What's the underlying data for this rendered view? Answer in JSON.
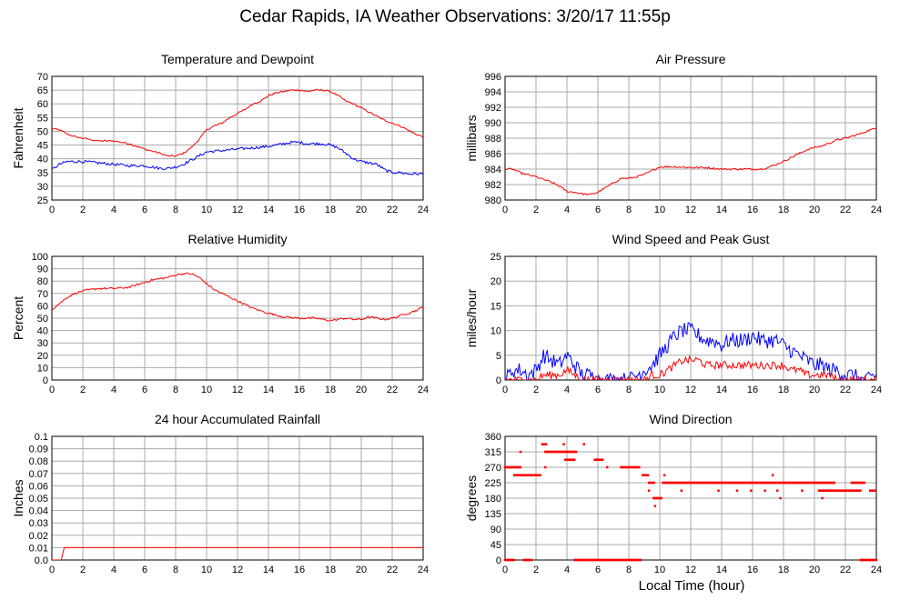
{
  "page": {
    "title": "Cedar Rapids, IA Weather Observations: 3/20/17 11:55p",
    "x_axis_label": "Local Time (hour)"
  },
  "colors": {
    "red": "#ff0000",
    "blue": "#0000ff",
    "grid": "#aaaaaa",
    "axis": "#000000"
  },
  "chart_data": [
    {
      "id": "temp",
      "type": "line",
      "title": "Temperature and Dewpoint",
      "ylabel": "Fahrenheit",
      "xlim": [
        0,
        24
      ],
      "ylim": [
        25,
        70
      ],
      "xticks": [
        0,
        2,
        4,
        6,
        8,
        10,
        12,
        14,
        16,
        18,
        20,
        22,
        24
      ],
      "yticks": [
        25,
        30,
        35,
        40,
        45,
        50,
        55,
        60,
        65,
        70
      ],
      "grid": true,
      "series": [
        {
          "color": "red",
          "jitter": 0.3,
          "x": [
            0,
            0.5,
            1,
            1.5,
            2,
            3,
            4,
            5,
            6,
            7,
            7.5,
            8,
            8.5,
            9,
            9.5,
            10,
            10.5,
            11,
            11.5,
            12,
            12.5,
            13,
            13.5,
            14,
            14.5,
            15,
            15.5,
            16,
            16.5,
            17,
            17.5,
            18,
            18.5,
            19,
            19.5,
            20,
            20.5,
            21,
            21.5,
            22,
            22.5,
            23,
            23.5,
            24
          ],
          "y": [
            51,
            50.5,
            49,
            48,
            47.5,
            46.5,
            46.5,
            45.5,
            43.5,
            42,
            41,
            41,
            42,
            44,
            47,
            50.5,
            52,
            53,
            55,
            56.5,
            58,
            60,
            61,
            63,
            64,
            64.5,
            65,
            65,
            64.5,
            65,
            65,
            64.5,
            63,
            61,
            60,
            58.5,
            57,
            55.5,
            54,
            53,
            52,
            50.5,
            49,
            48
          ]
        },
        {
          "color": "blue",
          "jitter": 0.5,
          "x": [
            0,
            0.5,
            1,
            2,
            3,
            4,
            5,
            6,
            7,
            7.5,
            8,
            8.5,
            9,
            9.5,
            10,
            11,
            12,
            13,
            14,
            15,
            15.5,
            16,
            16.5,
            17,
            17.5,
            18,
            18.5,
            19,
            19.5,
            20,
            21,
            21.5,
            22,
            22.5,
            23,
            23.5,
            24
          ],
          "y": [
            36,
            38,
            39,
            39,
            38.5,
            38,
            37.5,
            37.5,
            36.5,
            36.5,
            37,
            38,
            39.5,
            41,
            42.5,
            43,
            43.5,
            44,
            44.5,
            45.5,
            46,
            46,
            45.5,
            45.5,
            45.5,
            45,
            44,
            42,
            40,
            39,
            38,
            36,
            35,
            35,
            34.5,
            34.5,
            34.5
          ]
        }
      ]
    },
    {
      "id": "pressure",
      "type": "line",
      "title": "Air Pressure",
      "ylabel": "millibars",
      "xlim": [
        0,
        24
      ],
      "ylim": [
        980,
        996
      ],
      "xticks": [
        0,
        2,
        4,
        6,
        8,
        10,
        12,
        14,
        16,
        18,
        20,
        22,
        24
      ],
      "yticks": [
        980,
        982,
        984,
        986,
        988,
        990,
        992,
        994,
        996
      ],
      "grid": true,
      "series": [
        {
          "color": "red",
          "jitter": 0.12,
          "x": [
            0,
            0.5,
            1,
            2,
            3,
            3.5,
            4,
            4.5,
            5,
            5.5,
            6,
            6.5,
            7,
            7.5,
            8,
            8.5,
            9,
            9.5,
            10,
            11,
            12,
            13,
            14,
            15,
            16,
            16.5,
            17,
            17.5,
            18,
            18.5,
            19,
            19.5,
            20,
            20.5,
            21,
            21.5,
            22,
            22.5,
            23,
            23.5,
            24
          ],
          "y": [
            984,
            984,
            983.5,
            983,
            982.3,
            981.8,
            981.1,
            981,
            980.8,
            980.7,
            981,
            981.6,
            982.2,
            982.8,
            982.8,
            983,
            983.3,
            983.8,
            984.3,
            984.3,
            984.2,
            984.2,
            984,
            984,
            984,
            984,
            984.2,
            984.6,
            985,
            985.5,
            986,
            986.5,
            986.8,
            987,
            987.4,
            987.8,
            988,
            988.3,
            988.6,
            989,
            989.3
          ]
        }
      ]
    },
    {
      "id": "humidity",
      "type": "line",
      "title": "Relative Humidity",
      "ylabel": "Percent",
      "xlim": [
        0,
        24
      ],
      "ylim": [
        0,
        100
      ],
      "xticks": [
        0,
        2,
        4,
        6,
        8,
        10,
        12,
        14,
        16,
        18,
        20,
        22,
        24
      ],
      "yticks": [
        0,
        10,
        20,
        30,
        40,
        50,
        60,
        70,
        80,
        90,
        100
      ],
      "grid": true,
      "series": [
        {
          "color": "red",
          "jitter": 0.8,
          "x": [
            0,
            0.5,
            1,
            1.5,
            2,
            3,
            4,
            5,
            6,
            6.5,
            7,
            7.5,
            8,
            8.5,
            9,
            9.5,
            10,
            10.5,
            11,
            11.5,
            12,
            12.5,
            13,
            14,
            15,
            16,
            17,
            17.5,
            18,
            18.5,
            19,
            19.5,
            20,
            20.5,
            21,
            21.5,
            22,
            22.5,
            23,
            23.5,
            24
          ],
          "y": [
            57,
            62,
            67,
            70,
            72,
            74,
            74,
            75,
            79,
            81,
            82,
            83,
            85,
            86,
            86,
            83,
            78,
            73,
            70,
            67,
            64,
            61,
            58,
            54,
            51,
            50,
            50,
            49,
            48,
            49,
            50,
            49,
            49,
            51,
            50,
            49,
            50,
            52,
            54,
            56,
            59
          ]
        }
      ]
    },
    {
      "id": "wind",
      "type": "line",
      "title": "Wind Speed and Peak Gust",
      "ylabel": "miles/hour",
      "xlim": [
        0,
        24
      ],
      "ylim": [
        0,
        25
      ],
      "xticks": [
        0,
        2,
        4,
        6,
        8,
        10,
        12,
        14,
        16,
        18,
        20,
        22,
        24
      ],
      "yticks": [
        0,
        5,
        10,
        15,
        20,
        25
      ],
      "grid": true,
      "series": [
        {
          "color": "blue",
          "jitter": 1.6,
          "x": [
            0,
            0.5,
            1,
            1.5,
            2,
            2.5,
            3,
            3.5,
            4,
            4.5,
            5,
            5.5,
            6,
            6.5,
            7,
            7.5,
            8,
            8.5,
            9,
            9.5,
            10,
            10.5,
            11,
            11.5,
            12,
            12.5,
            13,
            13.5,
            14,
            14.5,
            15,
            15.5,
            16,
            16.5,
            17,
            17.5,
            18,
            18.5,
            19,
            19.5,
            20,
            20.5,
            21,
            21.5,
            22,
            22.5,
            23,
            23.5,
            24
          ],
          "y": [
            0,
            2,
            2,
            1,
            2,
            5,
            4,
            3,
            5,
            3,
            1,
            1,
            0,
            0,
            0,
            0,
            0,
            1,
            2,
            3,
            5,
            7,
            9,
            10,
            10,
            9,
            8,
            8,
            7,
            8,
            8,
            8,
            9,
            8,
            8,
            8,
            7,
            6,
            5,
            4,
            3,
            3,
            2,
            2,
            1,
            1,
            0,
            0,
            1
          ]
        },
        {
          "color": "red",
          "jitter": 0.8,
          "x": [
            0,
            0.5,
            1,
            1.5,
            2,
            2.5,
            3,
            3.5,
            4,
            4.5,
            5,
            5.5,
            6,
            6.5,
            7,
            7.5,
            8,
            8.5,
            9,
            9.5,
            10,
            10.5,
            11,
            11.5,
            12,
            12.5,
            13,
            13.5,
            14,
            14.5,
            15,
            15.5,
            16,
            16.5,
            17,
            17.5,
            18,
            18.5,
            19,
            19.5,
            20,
            20.5,
            21,
            21.5,
            22,
            22.5,
            23,
            23.5,
            24
          ],
          "y": [
            0,
            0,
            0,
            0,
            0,
            1,
            1,
            1,
            2,
            1,
            0,
            0,
            0,
            0,
            0,
            0,
            0,
            0,
            0,
            1,
            1,
            2,
            3,
            4,
            4,
            4,
            3,
            3,
            3,
            3,
            3,
            3,
            3,
            3,
            3,
            3,
            3,
            2,
            2,
            1,
            1,
            1,
            1,
            0,
            0,
            0,
            0,
            0,
            0
          ]
        }
      ]
    },
    {
      "id": "rain",
      "type": "line",
      "title": "24 hour Accumulated Rainfall",
      "ylabel": "Inches",
      "xlim": [
        0,
        24
      ],
      "ylim": [
        0,
        0.1
      ],
      "xticks": [
        0,
        2,
        4,
        6,
        8,
        10,
        12,
        14,
        16,
        18,
        20,
        22,
        24
      ],
      "yticks": [
        0.0,
        0.01,
        0.02,
        0.03,
        0.04,
        0.05,
        0.06,
        0.07,
        0.08,
        0.09,
        0.1
      ],
      "ytick_labels": [
        "0.0",
        "0.01",
        "0.02",
        "0.03",
        "0.04",
        "0.05",
        "0.06",
        "0.07",
        "0.08",
        "0.09",
        "0.1"
      ],
      "grid": true,
      "series": [
        {
          "color": "red",
          "jitter": 0,
          "x": [
            0,
            0.6,
            0.8,
            24
          ],
          "y": [
            0,
            0,
            0.01,
            0.01
          ]
        }
      ]
    },
    {
      "id": "winddir",
      "type": "scatter",
      "title": "Wind Direction",
      "ylabel": "degrees",
      "xlim": [
        0,
        24
      ],
      "ylim": [
        0,
        360
      ],
      "xticks": [
        0,
        2,
        4,
        6,
        8,
        10,
        12,
        14,
        16,
        18,
        20,
        22,
        24
      ],
      "yticks": [
        0,
        45,
        90,
        135,
        180,
        225,
        270,
        315,
        360
      ],
      "grid": true,
      "segments": [
        {
          "x0": 0.0,
          "x1": 0.4,
          "y": 270
        },
        {
          "x0": 0.0,
          "x1": 0.6,
          "y": 0
        },
        {
          "x0": 0.4,
          "x1": 1.0,
          "y": 270
        },
        {
          "x0": 0.6,
          "x1": 2.3,
          "y": 247
        },
        {
          "x0": 1.2,
          "x1": 1.7,
          "y": 0
        },
        {
          "x0": 2.4,
          "x1": 2.7,
          "y": 337
        },
        {
          "x0": 2.6,
          "x1": 4.6,
          "y": 315
        },
        {
          "x0": 3.9,
          "x1": 4.5,
          "y": 292
        },
        {
          "x0": 4.5,
          "x1": 8.8,
          "y": 0
        },
        {
          "x0": 5.8,
          "x1": 6.3,
          "y": 292
        },
        {
          "x0": 7.5,
          "x1": 8.7,
          "y": 270
        },
        {
          "x0": 8.9,
          "x1": 9.3,
          "y": 247
        },
        {
          "x0": 9.3,
          "x1": 9.7,
          "y": 225
        },
        {
          "x0": 9.6,
          "x1": 10.1,
          "y": 180
        },
        {
          "x0": 10.2,
          "x1": 21.3,
          "y": 225
        },
        {
          "x0": 20.3,
          "x1": 23.0,
          "y": 202
        },
        {
          "x0": 22.4,
          "x1": 23.3,
          "y": 225
        },
        {
          "x0": 23.0,
          "x1": 24.0,
          "y": 0
        },
        {
          "x0": 23.6,
          "x1": 24.0,
          "y": 202
        }
      ],
      "points": [
        {
          "x": 1.0,
          "y": 315
        },
        {
          "x": 2.6,
          "y": 270
        },
        {
          "x": 3.8,
          "y": 337
        },
        {
          "x": 5.1,
          "y": 337
        },
        {
          "x": 6.6,
          "y": 270
        },
        {
          "x": 9.3,
          "y": 202
        },
        {
          "x": 9.7,
          "y": 157
        },
        {
          "x": 9.8,
          "y": 180
        },
        {
          "x": 10.3,
          "y": 247
        },
        {
          "x": 11.4,
          "y": 202
        },
        {
          "x": 13.8,
          "y": 202
        },
        {
          "x": 15.0,
          "y": 202
        },
        {
          "x": 15.9,
          "y": 202
        },
        {
          "x": 16.8,
          "y": 202
        },
        {
          "x": 17.3,
          "y": 247
        },
        {
          "x": 17.6,
          "y": 202
        },
        {
          "x": 17.8,
          "y": 180
        },
        {
          "x": 19.2,
          "y": 202
        },
        {
          "x": 20.5,
          "y": 180
        },
        {
          "x": 21.0,
          "y": 202
        }
      ]
    }
  ]
}
